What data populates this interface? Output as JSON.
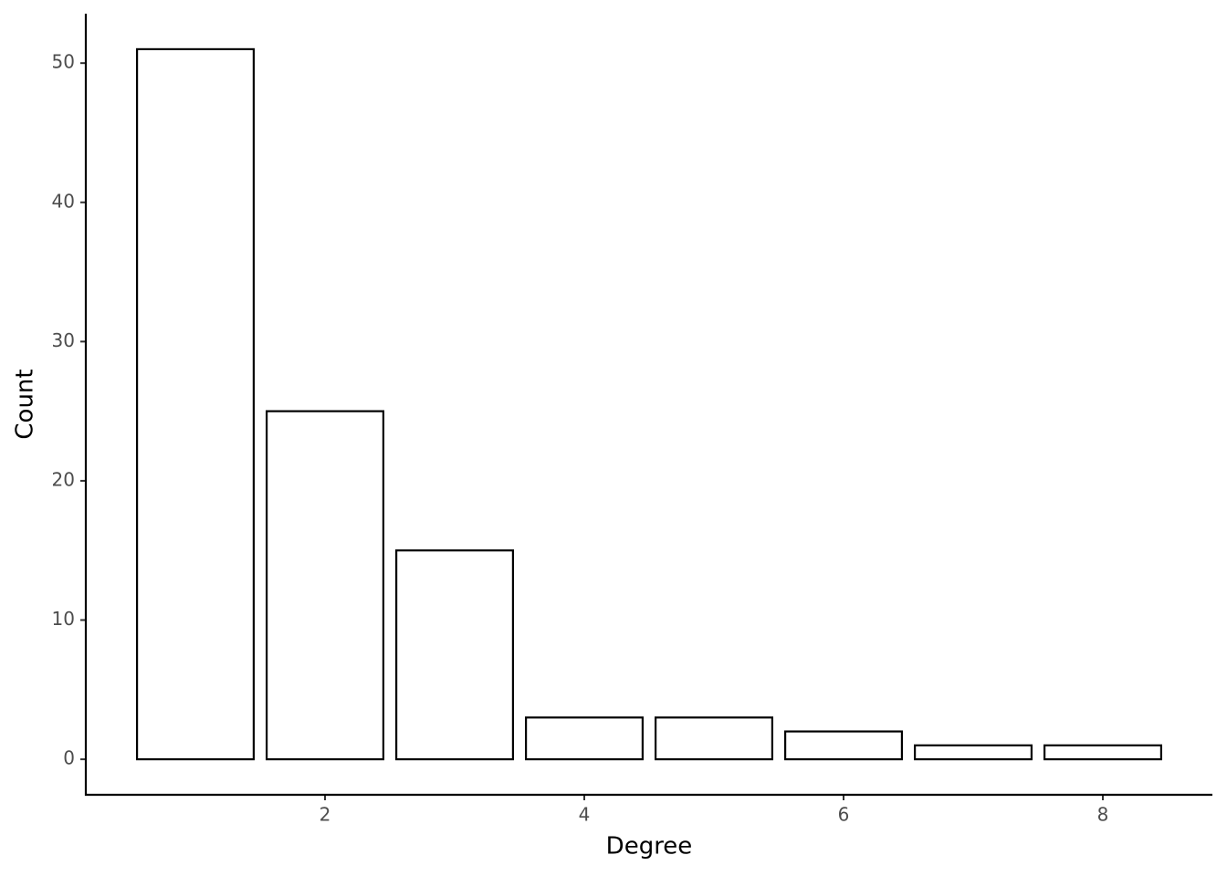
{
  "chart_data": {
    "type": "bar",
    "x": [
      1,
      2,
      3,
      4,
      5,
      6,
      7,
      8
    ],
    "values": [
      51,
      25,
      15,
      3,
      3,
      2,
      1,
      1
    ],
    "xlabel": "Degree",
    "ylabel": "Count",
    "xlim": [
      0.155,
      8.845
    ],
    "xticks": [
      2,
      4,
      6,
      8
    ],
    "ylim": [
      -2.55,
      53.55
    ],
    "yticks": [
      0,
      10,
      20,
      30,
      40,
      50
    ],
    "color": "#ffffff",
    "grid": false
  }
}
